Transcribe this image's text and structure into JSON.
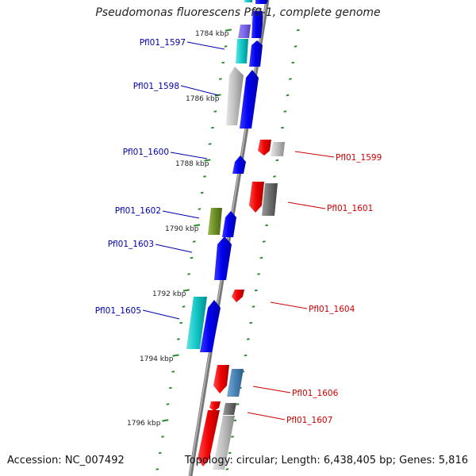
{
  "title": "Pseudomonas fluorescens Pf0-1, complete genome",
  "accession": "Accession: NC_007492",
  "topology": "Topology: circular; Length: 6,438,405 bp; Genes: 5,816",
  "colors": {
    "backbone": "#777777",
    "tick": "#2a8a2a",
    "forward_label": "#0000aa",
    "reverse_label": "#cc0000"
  },
  "ticks": [
    {
      "label": "1784 kbp"
    },
    {
      "label": "1786 kbp"
    },
    {
      "label": "1788 kbp"
    },
    {
      "label": "1790 kbp"
    },
    {
      "label": "1792 kbp"
    },
    {
      "label": "1794 kbp"
    },
    {
      "label": "1796 kbp"
    }
  ],
  "genes": [
    {
      "locus": "Pfl01_1597",
      "strand": "forward"
    },
    {
      "locus": "Pfl01_1598",
      "strand": "forward"
    },
    {
      "locus": "Pfl01_1599",
      "strand": "reverse"
    },
    {
      "locus": "Pfl01_1600",
      "strand": "forward"
    },
    {
      "locus": "Pfl01_1601",
      "strand": "reverse"
    },
    {
      "locus": "Pfl01_1602",
      "strand": "forward"
    },
    {
      "locus": "Pfl01_1603",
      "strand": "forward"
    },
    {
      "locus": "Pfl01_1604",
      "strand": "reverse"
    },
    {
      "locus": "Pfl01_1605",
      "strand": "forward"
    },
    {
      "locus": "Pfl01_1606",
      "strand": "reverse"
    },
    {
      "locus": "Pfl01_1607",
      "strand": "reverse"
    }
  ]
}
